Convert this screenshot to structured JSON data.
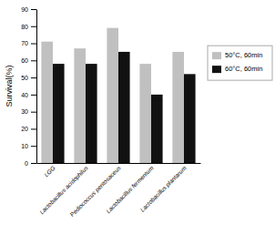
{
  "chart_data": {
    "type": "bar",
    "categories": [
      "LGG",
      "Lactobacillus acidophilus",
      "Pediococcus pentosaceus",
      "Lactobacillus fermentum",
      "Lactobacillus plantarum"
    ],
    "series": [
      {
        "name": "50°C, 60min",
        "color": "#c0c0c0",
        "values": [
          71,
          67,
          79,
          58,
          65
        ]
      },
      {
        "name": "60°C, 60min",
        "color": "#111111",
        "values": [
          58,
          58,
          65,
          40,
          52
        ]
      }
    ],
    "ylabel": "Survival(%)",
    "ylim": [
      0,
      90
    ],
    "yticks": [
      0,
      10,
      20,
      30,
      40,
      50,
      60,
      70,
      80,
      90
    ],
    "grid": false,
    "legend": "right"
  }
}
